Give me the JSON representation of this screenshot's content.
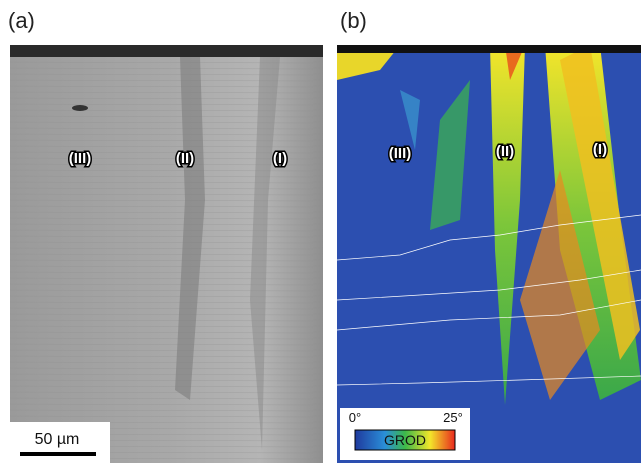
{
  "panels": [
    {
      "label": "(a)",
      "regions": [
        "(III)",
        "(II)",
        "(I)"
      ],
      "scale_bar": "50 µm"
    },
    {
      "label": "(b)",
      "regions": [
        "(III)",
        "(II)",
        "(I)"
      ],
      "colorbar": {
        "min_label": "0°",
        "max_label": "25°",
        "title": "GROD"
      }
    }
  ]
}
